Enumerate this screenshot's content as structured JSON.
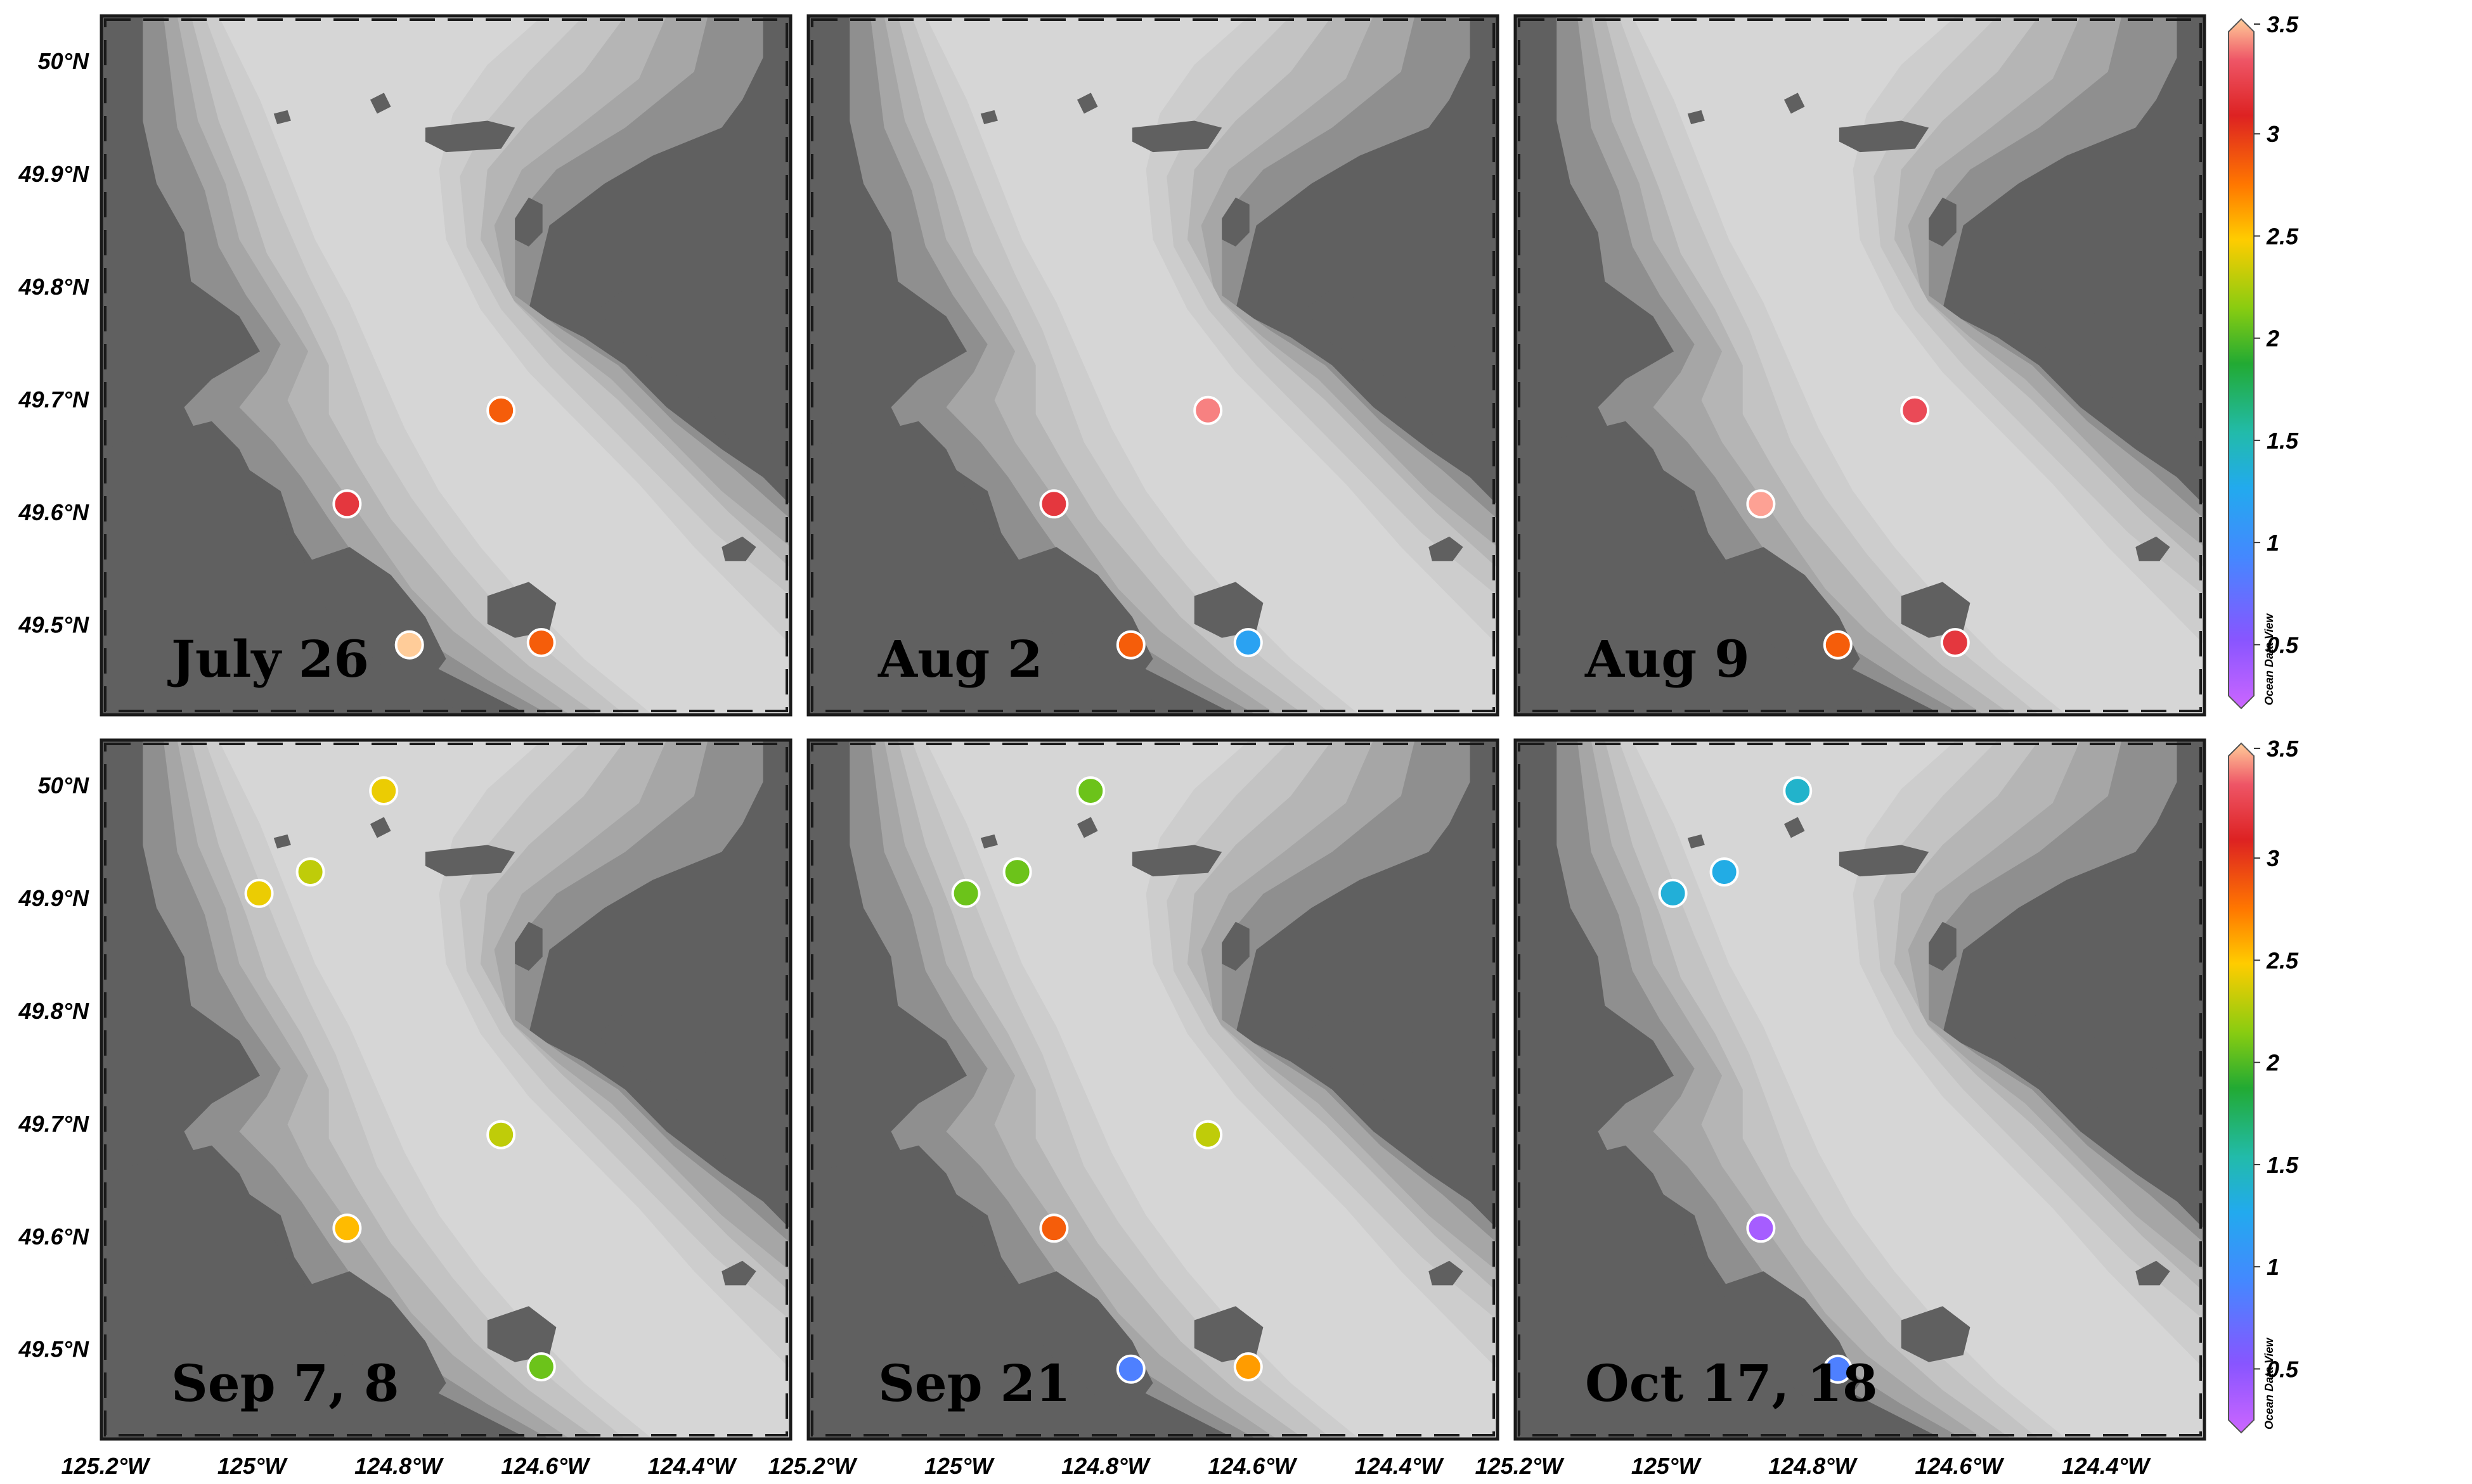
{
  "panels": [
    {
      "label": "July 26",
      "stations": [
        {
          "lon": -124.66,
          "lat": 49.69,
          "value": 2.5
        },
        {
          "lon": -124.87,
          "lat": 49.607,
          "value": 2.8
        },
        {
          "lon": -124.785,
          "lat": 49.482,
          "value": 3.5
        },
        {
          "lon": -124.605,
          "lat": 49.484,
          "value": 2.5
        }
      ]
    },
    {
      "label": "Aug 2",
      "stations": [
        {
          "lon": -124.66,
          "lat": 49.69,
          "value": 3.1
        },
        {
          "lon": -124.87,
          "lat": 49.607,
          "value": 2.8
        },
        {
          "lon": -124.765,
          "lat": 49.482,
          "value": 2.5
        },
        {
          "lon": -124.605,
          "lat": 49.484,
          "value": 1.0
        }
      ]
    },
    {
      "label": "Aug 9",
      "stations": [
        {
          "lon": -124.66,
          "lat": 49.69,
          "value": 2.9
        },
        {
          "lon": -124.87,
          "lat": 49.607,
          "value": 3.2
        },
        {
          "lon": -124.765,
          "lat": 49.482,
          "value": 2.5
        },
        {
          "lon": -124.605,
          "lat": 49.484,
          "value": 2.8
        }
      ]
    },
    {
      "label": "Sep 7, 8",
      "stations": [
        {
          "lon": -124.82,
          "lat": 49.995,
          "value": 2.1
        },
        {
          "lon": -124.92,
          "lat": 49.923,
          "value": 2.0
        },
        {
          "lon": -124.99,
          "lat": 49.904,
          "value": 2.1
        },
        {
          "lon": -124.66,
          "lat": 49.69,
          "value": 2.0
        },
        {
          "lon": -124.87,
          "lat": 49.607,
          "value": 2.2
        },
        {
          "lon": -124.605,
          "lat": 49.484,
          "value": 1.8
        }
      ]
    },
    {
      "label": "Sep 21",
      "stations": [
        {
          "lon": -124.82,
          "lat": 49.995,
          "value": 1.8
        },
        {
          "lon": -124.92,
          "lat": 49.923,
          "value": 1.8
        },
        {
          "lon": -124.99,
          "lat": 49.904,
          "value": 1.8
        },
        {
          "lon": -124.66,
          "lat": 49.69,
          "value": 2.0
        },
        {
          "lon": -124.87,
          "lat": 49.607,
          "value": 2.5
        },
        {
          "lon": -124.765,
          "lat": 49.482,
          "value": 0.75
        },
        {
          "lon": -124.605,
          "lat": 49.484,
          "value": 2.3
        }
      ]
    },
    {
      "label": "Oct 17, 18",
      "stations": [
        {
          "lon": -124.82,
          "lat": 49.995,
          "value": 1.2
        },
        {
          "lon": -124.92,
          "lat": 49.923,
          "value": 1.1
        },
        {
          "lon": -124.99,
          "lat": 49.904,
          "value": 1.15
        },
        {
          "lon": -124.87,
          "lat": 49.607,
          "value": 0.4
        },
        {
          "lon": -124.765,
          "lat": 49.482,
          "value": 0.75
        }
      ]
    }
  ],
  "axes": {
    "lon_ticks": [
      -125.2,
      -125.0,
      -124.8,
      -124.6,
      -124.4
    ],
    "lon_tick_labels": [
      "125.2°W",
      "125°W",
      "124.8°W",
      "124.6°W",
      "124.4°W"
    ],
    "lat_ticks": [
      50.0,
      49.9,
      49.8,
      49.7,
      49.6,
      49.5
    ],
    "lat_tick_labels": [
      "50°N",
      "49.9°N",
      "49.8°N",
      "49.7°N",
      "49.6°N",
      "49.5°N"
    ],
    "lon_range": [
      -125.205,
      -124.265
    ],
    "lat_range": [
      49.42,
      50.04
    ]
  },
  "colorbar": {
    "range": [
      0.25,
      3.5
    ],
    "ticks": [
      0.5,
      1,
      1.5,
      2,
      2.5,
      3,
      3.5
    ],
    "tick_labels": [
      "0.5",
      "1",
      "1.5",
      "2",
      "2.5",
      "3",
      "3.5"
    ],
    "watermark": "Ocean Data View",
    "palette": [
      "#cc66ff",
      "#8855ff",
      "#4488ff",
      "#22aaee",
      "#22bbaa",
      "#22aa33",
      "#88cc11",
      "#ffcc00",
      "#ff7700",
      "#dd2222",
      "#ee5566",
      "#ffaa99",
      "#ffcc99"
    ]
  },
  "map_colors": {
    "land": "#606060",
    "water_levels": [
      "#8f8f8f",
      "#a6a6a6",
      "#b5b5b5",
      "#c3c3c3",
      "#cdcdcd",
      "#d6d6d6"
    ],
    "frame": "#1a1a1a",
    "marker_edge": "#ffffff"
  }
}
